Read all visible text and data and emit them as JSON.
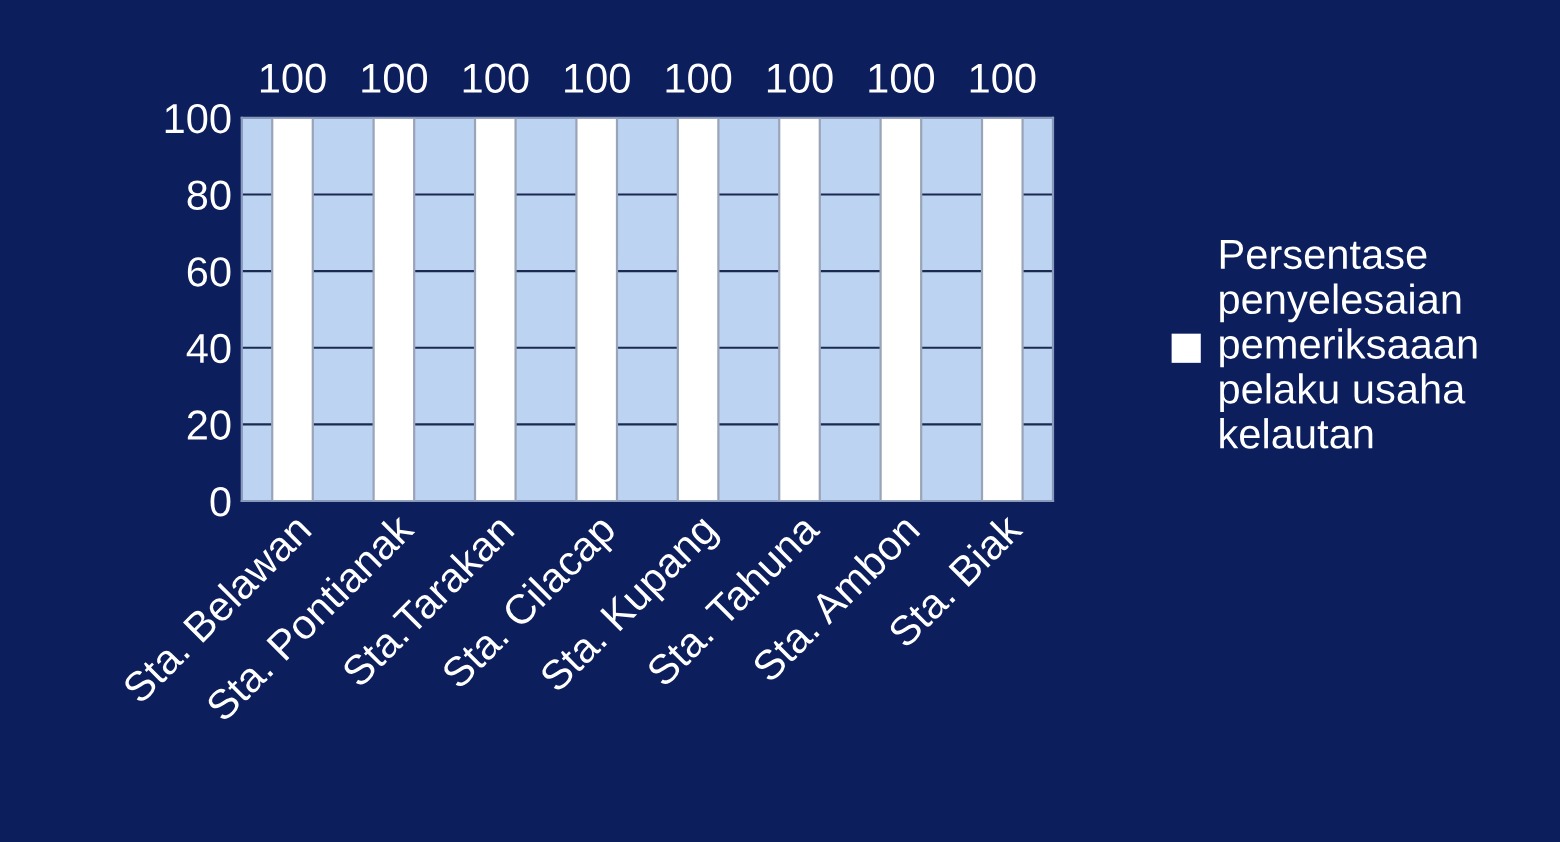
{
  "chart_data": {
    "type": "bar",
    "categories": [
      "Sta. Belawan",
      "Sta. Pontianak",
      "Sta.Tarakan",
      "Sta. Cilacap",
      "Sta. Kupang",
      "Sta. Tahuna",
      "Sta. Ambon",
      "Sta. Biak"
    ],
    "series": [
      {
        "name": "Persentase penyelesaian pemeriksaaan pelaku usaha kelautan",
        "color": "#ffffff",
        "values": [
          100,
          100,
          100,
          100,
          100,
          100,
          100,
          100
        ]
      }
    ],
    "ylim": [
      0,
      100
    ],
    "yticks": [
      0,
      20,
      40,
      60,
      80,
      100
    ],
    "grid": "y",
    "legend": "right",
    "data_labels": true
  }
}
